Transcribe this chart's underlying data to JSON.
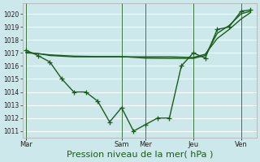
{
  "bg_color": "#cce8ea",
  "grid_color": "#ffffff",
  "line_color": "#1a5c1a",
  "marker_color": "#1a5c1a",
  "xlabel": "Pression niveau de la mer( hPa )",
  "xlabel_fontsize": 8,
  "ylim": [
    1010.5,
    1020.8
  ],
  "yticks": [
    1011,
    1012,
    1013,
    1014,
    1015,
    1016,
    1017,
    1018,
    1019,
    1020
  ],
  "day_labels": [
    "Mar",
    "Sam",
    "Mer",
    "Jeu",
    "Ven"
  ],
  "day_positions": [
    0,
    4,
    5,
    7,
    9
  ],
  "xlim": [
    -0.15,
    9.65
  ],
  "series1_x": [
    0,
    0.5,
    1,
    1.5,
    2,
    2.5,
    3,
    3.5,
    4,
    4.5,
    5,
    5.5,
    6,
    6.5,
    7,
    7.5,
    8,
    8.5,
    9,
    9.4
  ],
  "series1_y": [
    1017.2,
    1016.8,
    1016.3,
    1015.0,
    1014.0,
    1014.0,
    1013.3,
    1011.7,
    1012.8,
    1011.0,
    1011.5,
    1012.0,
    1012.0,
    1016.0,
    1017.0,
    1016.6,
    1018.8,
    1019.0,
    1020.2,
    1020.3
  ],
  "series2_x": [
    0,
    0.5,
    1,
    1.5,
    2,
    2.5,
    3,
    3.5,
    4,
    4.5,
    5,
    6,
    7,
    7.5,
    8,
    8.5,
    9,
    9.4
  ],
  "series2_y": [
    1017.0,
    1016.95,
    1016.8,
    1016.75,
    1016.7,
    1016.7,
    1016.7,
    1016.7,
    1016.7,
    1016.7,
    1016.7,
    1016.7,
    1016.65,
    1016.9,
    1018.1,
    1018.8,
    1019.6,
    1020.1
  ],
  "series3_x": [
    0,
    1,
    2,
    3,
    4,
    5,
    6,
    7,
    7.5,
    8,
    8.5,
    9,
    9.4
  ],
  "series3_y": [
    1017.05,
    1016.85,
    1016.75,
    1016.72,
    1016.72,
    1016.6,
    1016.58,
    1016.58,
    1016.8,
    1018.5,
    1019.1,
    1020.0,
    1020.2
  ]
}
